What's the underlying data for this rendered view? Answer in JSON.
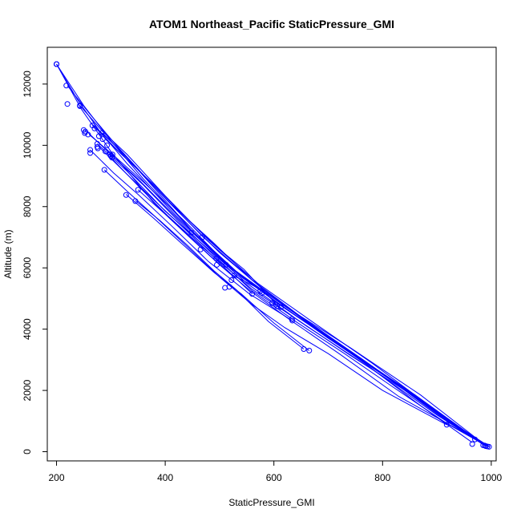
{
  "chart_data": {
    "type": "line",
    "title": "ATOM1 Northeast_Pacific StaticPressure_GMI",
    "xlabel": "StaticPressure_GMI",
    "ylabel": "Altitude (m)",
    "xlim": [
      183,
      1009
    ],
    "ylim": [
      -300,
      13200
    ],
    "x_ticks": [
      200,
      400,
      600,
      800,
      1000
    ],
    "y_ticks": [
      0,
      2000,
      4000,
      6000,
      8000,
      10000,
      12000
    ],
    "x_tick_labels": [
      "200",
      "400",
      "600",
      "800",
      "1000"
    ],
    "y_tick_labels": [
      "0",
      "2000",
      "4000",
      "6000",
      "8000",
      "10000",
      "12000"
    ],
    "grid": false,
    "legend": "none",
    "series_color": "#0000ff",
    "series": [
      {
        "x": [
          200,
          245,
          300,
          380,
          470,
          560,
          660,
          780,
          900,
          990
        ],
        "y": [
          12650,
          11200,
          9800,
          8100,
          6650,
          5300,
          4100,
          2700,
          1200,
          180
        ]
      },
      {
        "x": [
          200,
          240,
          280,
          330,
          420,
          520,
          620,
          740,
          870,
          992
        ],
        "y": [
          12650,
          11450,
          10450,
          9400,
          7700,
          6000,
          4750,
          3400,
          1850,
          170
        ]
      },
      {
        "x": [
          200,
          250,
          300,
          360,
          450,
          540,
          640,
          760,
          880,
          985
        ],
        "y": [
          12650,
          11300,
          10150,
          8900,
          7200,
          5700,
          4450,
          3050,
          1550,
          250
        ]
      },
      {
        "x": [
          220,
          260,
          310,
          380,
          470,
          560,
          650,
          760,
          880,
          993
        ],
        "y": [
          11950,
          11050,
          10000,
          8650,
          7000,
          5600,
          4400,
          3050,
          1550,
          170
        ]
      },
      {
        "x": [
          243,
          285,
          330,
          400,
          480,
          570,
          670,
          780,
          890,
          988
        ],
        "y": [
          11300,
          10450,
          9700,
          8350,
          6900,
          5500,
          4250,
          2900,
          1450,
          210
        ]
      },
      {
        "x": [
          253,
          300,
          350,
          420,
          510,
          600,
          700,
          810,
          910,
          990
        ],
        "y": [
          10500,
          9700,
          8900,
          7650,
          6150,
          4950,
          3700,
          2400,
          1100,
          180
        ]
      },
      {
        "x": [
          260,
          300,
          360,
          440,
          520,
          610,
          710,
          820,
          920,
          993
        ],
        "y": [
          10350,
          9750,
          8800,
          7450,
          6000,
          4800,
          3600,
          2300,
          1000,
          170
        ]
      },
      {
        "x": [
          265,
          320,
          380,
          450,
          530,
          620,
          720,
          830,
          930,
          990
        ],
        "y": [
          10700,
          9800,
          8600,
          7200,
          5900,
          4750,
          3500,
          2200,
          950,
          190
        ]
      },
      {
        "x": [
          275,
          330,
          400,
          480,
          550,
          640,
          740,
          850,
          940,
          995
        ],
        "y": [
          10050,
          9150,
          7850,
          6600,
          5500,
          4350,
          3150,
          1900,
          780,
          160
        ]
      },
      {
        "x": [
          285,
          340,
          410,
          490,
          560,
          650,
          750,
          860,
          950,
          997
        ],
        "y": [
          10400,
          9400,
          8100,
          6800,
          5600,
          4400,
          3150,
          1850,
          700,
          160
        ]
      },
      {
        "x": [
          290,
          350,
          420,
          500,
          580,
          670,
          770,
          870,
          965
        ],
        "y": [
          10200,
          9200,
          7900,
          6500,
          5300,
          4100,
          2850,
          1500,
          300
        ]
      },
      {
        "x": [
          300,
          360,
          420,
          490,
          560,
          640,
          730,
          820,
          920,
          970
        ],
        "y": [
          9700,
          8700,
          7600,
          6400,
          5250,
          4250,
          3200,
          2100,
          900,
          400
        ]
      },
      {
        "x": [
          262,
          305,
          350,
          410,
          480,
          555,
          632
        ],
        "y": [
          9850,
          9100,
          8400,
          7400,
          6200,
          5150,
          4300
        ]
      },
      {
        "x": [
          270,
          320,
          380,
          440,
          500,
          545,
          605
        ],
        "y": [
          10600,
          9700,
          8700,
          7600,
          6600,
          5950,
          4800
        ]
      },
      {
        "x": [
          288,
          330,
          380,
          440,
          500,
          560,
          620,
          700,
          800,
          918
        ],
        "y": [
          9200,
          8500,
          7700,
          6700,
          5700,
          4800,
          4050,
          3200,
          2000,
          880
        ]
      },
      {
        "x": [
          328,
          380,
          430,
          490,
          540,
          600,
          665
        ],
        "y": [
          8400,
          7600,
          6800,
          5850,
          5150,
          4200,
          3300
        ]
      },
      {
        "x": [
          345,
          390,
          440,
          490,
          530,
          590,
          655
        ],
        "y": [
          8200,
          7550,
          6750,
          5900,
          5300,
          4250,
          3350
        ]
      },
      {
        "x": [
          350,
          400,
          445,
          500,
          560,
          630,
          720,
          830,
          970
        ],
        "y": [
          8550,
          7750,
          7000,
          6100,
          5200,
          4300,
          3200,
          1800,
          420
        ]
      },
      {
        "x": [
          300,
          360,
          410,
          470,
          520,
          575
        ],
        "y": [
          9600,
          8500,
          7600,
          6600,
          5800,
          5300
        ]
      },
      {
        "x": [
          278,
          330,
          380,
          440,
          495,
          560
        ],
        "y": [
          9950,
          9050,
          8200,
          7200,
          6250,
          5150
        ]
      }
    ],
    "points_x": [
      200,
      200,
      200,
      218,
      220,
      243,
      243,
      250,
      252,
      253,
      258,
      262,
      262,
      266,
      270,
      275,
      275,
      276,
      278,
      283,
      285,
      288,
      290,
      293,
      298,
      300,
      302,
      303,
      328,
      345,
      350,
      448,
      465,
      468,
      494,
      495,
      510,
      512,
      518,
      522,
      527,
      560,
      575,
      578,
      597,
      603,
      606,
      613,
      633,
      634,
      655,
      665,
      918,
      965,
      970,
      985,
      988,
      990,
      993,
      996
    ],
    "points_y": [
      12650,
      12650,
      12650,
      11950,
      11350,
      11300,
      11280,
      10500,
      10400,
      10450,
      10350,
      9850,
      9750,
      10650,
      10550,
      10050,
      9950,
      9900,
      10300,
      10400,
      10200,
      9200,
      9800,
      10000,
      9700,
      9650,
      9600,
      9700,
      8380,
      8180,
      8550,
      7150,
      6600,
      7000,
      6300,
      6100,
      5350,
      6100,
      5380,
      5600,
      5750,
      5150,
      5250,
      5180,
      4850,
      4800,
      4750,
      4720,
      4330,
      4280,
      3350,
      3300,
      880,
      250,
      400,
      210,
      200,
      180,
      170,
      160
    ]
  }
}
